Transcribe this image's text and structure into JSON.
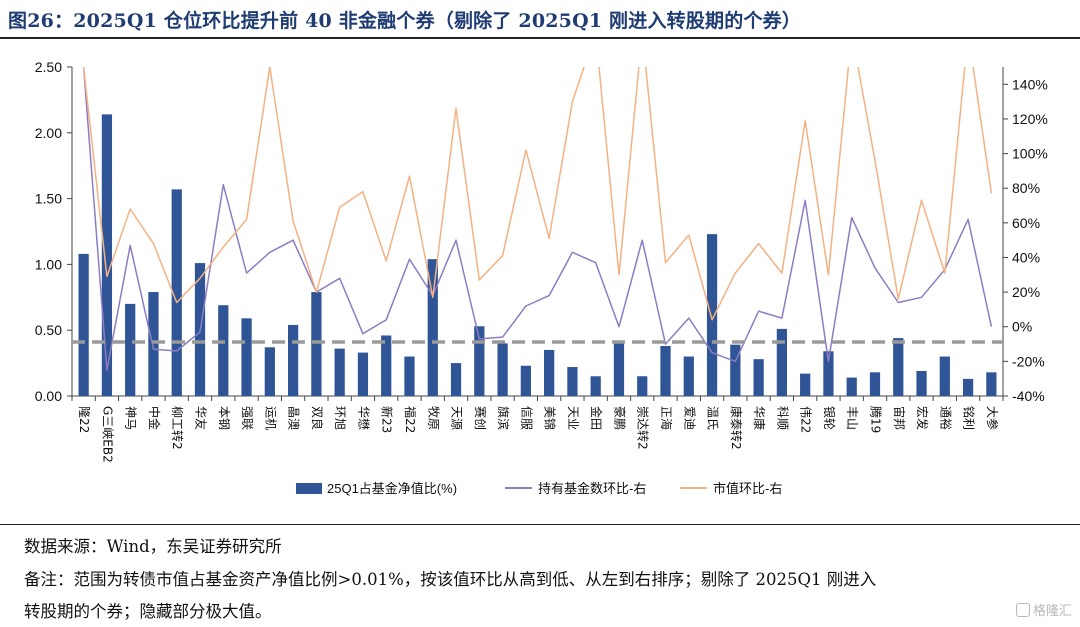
{
  "title": "图26：2025Q1 仓位环比提升前 40 非金融个券（剔除了 2025Q1 刚进入转股期的个券）",
  "source": "数据来源：Wind，东吴证券研究所",
  "note_line1": "备注：范围为转债市值占基金资产净值比例>0.01%，按该值环比从高到低、从左到右排序；剔除了 2025Q1 刚进入",
  "note_line2": "转股期的个券；隐藏部分极大值。",
  "watermark": "格隆汇",
  "colors": {
    "bar": "#2f5597",
    "purple": "#8e7cc3",
    "orange": "#f4b183",
    "dashed": "#9a9a9a"
  },
  "chart_data": {
    "type": "bar",
    "categories": [
      "隆22",
      "G三峡EB2",
      "神马",
      "中金",
      "柳工转2",
      "华友",
      "本钢",
      "强联",
      "运机",
      "晶澳",
      "双良",
      "环旭",
      "华懋",
      "新23",
      "福22",
      "牧原",
      "天源",
      "赛创",
      "旗滨",
      "信服",
      "美锦",
      "天业",
      "金田",
      "豪鹏",
      "崇达转2",
      "正海",
      "爱迪",
      "温氏",
      "康泰转2",
      "华康",
      "科顺",
      "伟22",
      "银轮",
      "丰山",
      "腾19",
      "宙邦",
      "宏发",
      "通裕",
      "铭利",
      "大参"
    ],
    "series": [
      {
        "name": "25Q1占基金净值比(%)",
        "type": "bar",
        "axis": "left",
        "values": [
          1.08,
          2.14,
          0.7,
          0.79,
          1.57,
          1.01,
          0.69,
          0.59,
          0.37,
          0.54,
          0.79,
          0.36,
          0.33,
          0.46,
          0.3,
          1.04,
          0.25,
          0.53,
          0.4,
          0.23,
          0.35,
          0.22,
          0.15,
          0.41,
          0.15,
          0.38,
          0.3,
          1.23,
          0.39,
          0.28,
          0.51,
          0.17,
          0.34,
          0.14,
          0.18,
          0.44,
          0.19,
          0.3,
          0.13,
          0.18
        ]
      },
      {
        "name": "持有基金数环比-右",
        "type": "line",
        "axis": "right",
        "values": [
          150,
          -25,
          47,
          -13,
          -14,
          -3,
          82,
          31,
          43,
          50,
          20,
          28,
          -4,
          4,
          39,
          18,
          50,
          -7,
          -6,
          12,
          18,
          43,
          37,
          0,
          50,
          -10,
          5,
          -15,
          -20,
          9,
          5,
          73,
          -20,
          63,
          34,
          14,
          17,
          33,
          62,
          0
        ]
      },
      {
        "name": "市值环比-右",
        "type": "line",
        "axis": "right",
        "values": [
          150,
          29,
          68,
          48,
          14,
          28,
          46,
          62,
          150,
          61,
          20,
          69,
          78,
          38,
          87,
          17,
          126,
          27,
          41,
          102,
          51,
          130,
          170,
          30,
          170,
          37,
          53,
          4,
          31,
          48,
          31,
          119,
          30,
          170,
          96,
          16,
          73,
          31,
          170,
          77
        ]
      }
    ],
    "y_left": {
      "min": 0,
      "max": 2.5,
      "ticks": [
        "0.00",
        "0.50",
        "1.00",
        "1.50",
        "2.00",
        "2.50"
      ]
    },
    "y_right": {
      "min": -40,
      "max": 150,
      "ticks": [
        "-40%",
        "-20%",
        "0%",
        "20%",
        "40%",
        "60%",
        "80%",
        "100%",
        "120%",
        "140%"
      ]
    },
    "reference_line_left": 0.41,
    "legend_position": "bottom",
    "grid": false
  }
}
